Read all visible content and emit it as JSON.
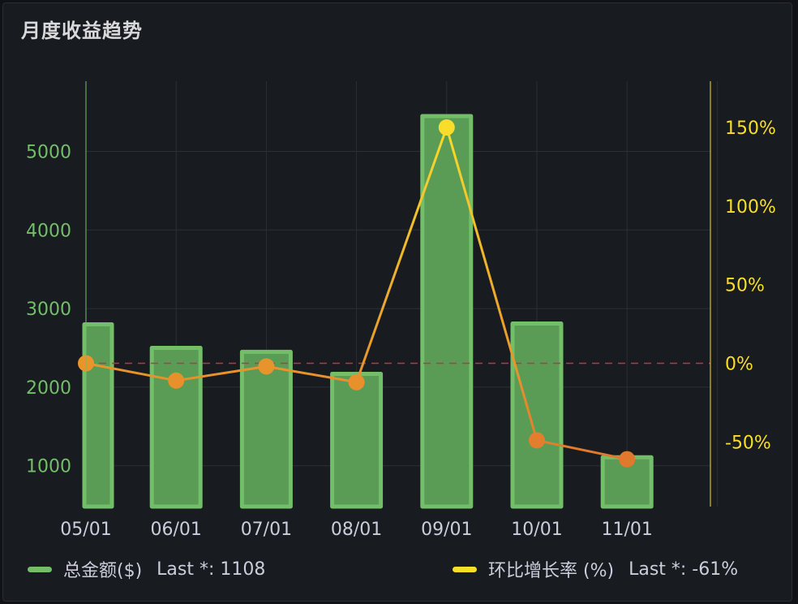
{
  "panel": {
    "title": "月度收益趋势"
  },
  "chart_data": {
    "type": "bar",
    "categories": [
      "05/01",
      "06/01",
      "07/01",
      "08/01",
      "09/01",
      "10/01",
      "11/01"
    ],
    "series": [
      {
        "name": "总金额($)",
        "type": "bar",
        "axis": "left",
        "values": [
          2800,
          2500,
          2450,
          2170,
          5450,
          2810,
          1108
        ]
      },
      {
        "name": "环比增长率 (%)",
        "type": "line",
        "axis": "right",
        "values": [
          0,
          -11,
          -2,
          -12,
          150,
          -49,
          -61
        ]
      }
    ],
    "y_left": {
      "ticks": [
        1000,
        2000,
        3000,
        4000,
        5000
      ],
      "lim": [
        470,
        5890
      ]
    },
    "y_right": {
      "ticks": [
        "150%",
        "100%",
        "50%",
        "0%",
        "-50%"
      ],
      "tick_values": [
        150,
        100,
        50,
        0,
        -50
      ],
      "lim": [
        -90,
        180
      ]
    },
    "threshold": {
      "axis": "right",
      "value": 0
    },
    "grid": true,
    "colors": {
      "bar": "#73bf69",
      "bar_fill": "#5a9c55",
      "line_top": "#fade2a",
      "line_bottom": "#e0752d",
      "left_axis": "#73bf69",
      "right_axis": "#fade2a",
      "threshold": "#c4314b"
    }
  },
  "legend": [
    {
      "label": "总金额($)",
      "stat": "Last *: 1108",
      "color": "#73bf69"
    },
    {
      "label": "环比增长率 (%)",
      "stat": "Last *: -61%",
      "color": "#fade2a"
    }
  ]
}
